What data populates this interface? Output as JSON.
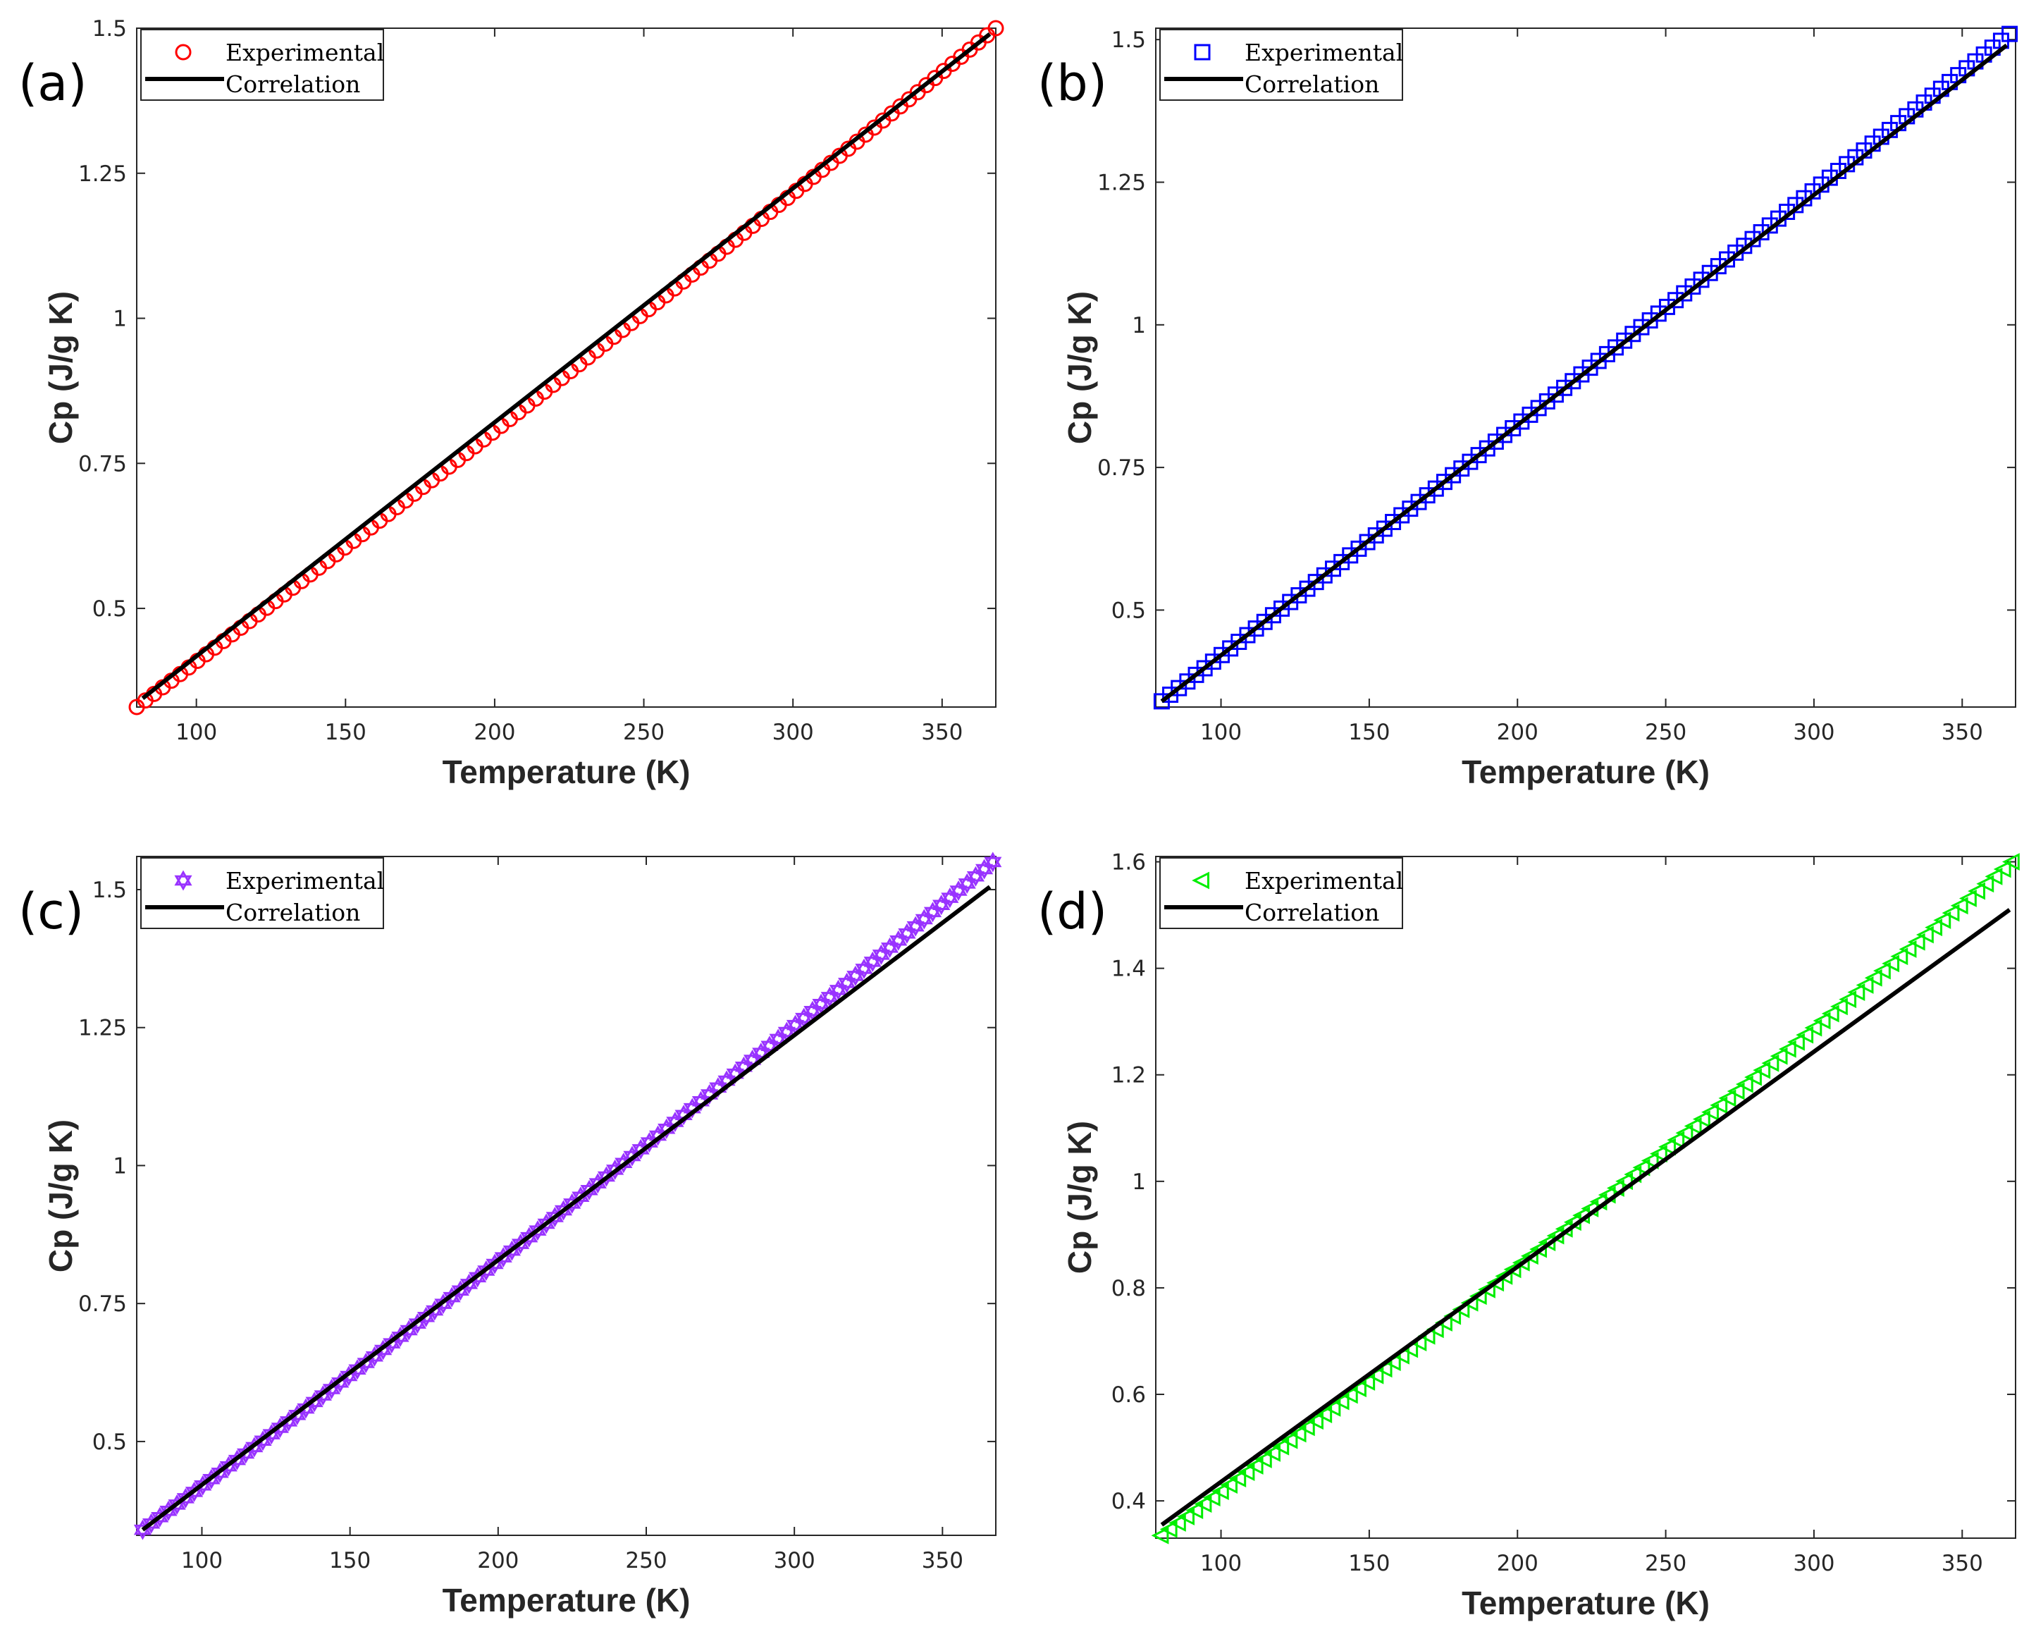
{
  "figure": {
    "background": "#ffffff",
    "axis_color": "#262626",
    "correlation_color": "#000000"
  },
  "chart_data": [
    {
      "panel": "(a)",
      "type": "scatter",
      "xlabel": "Temperature (K)",
      "ylabel": "Cp (J/g K)",
      "xlim": [
        80,
        368
      ],
      "ylim": [
        0.33,
        1.5
      ],
      "xticks": [
        100,
        150,
        200,
        250,
        300,
        350
      ],
      "yticks": [
        0.5,
        0.75,
        1,
        1.25,
        1.5
      ],
      "yticklabels": [
        "0.5",
        "0.75",
        "1",
        "1.25",
        "1.5"
      ],
      "legend": {
        "position": "top-left",
        "entries": [
          "Experimental",
          "Correlation"
        ]
      },
      "series": [
        {
          "name": "Experimental",
          "marker": "circle",
          "color": "#ff0000",
          "x": [
            80,
            368
          ],
          "y": [
            0.33,
            1.5
          ],
          "bulge": -0.012,
          "n_points": 100
        },
        {
          "name": "Correlation",
          "style": "line",
          "color": "#000000",
          "x": [
            82,
            366
          ],
          "y": [
            0.345,
            1.49
          ]
        }
      ]
    },
    {
      "panel": "(b)",
      "type": "scatter",
      "xlabel": "Temperature (K)",
      "ylabel": "Cp (J/g K)",
      "xlim": [
        78,
        368
      ],
      "ylim": [
        0.33,
        1.52
      ],
      "xticks": [
        100,
        150,
        200,
        250,
        300,
        350
      ],
      "yticks": [
        0.5,
        0.75,
        1,
        1.25,
        1.5
      ],
      "yticklabels": [
        "0.5",
        "0.75",
        "1",
        "1.25",
        "1.5"
      ],
      "legend": {
        "position": "top-left",
        "entries": [
          "Experimental",
          "Correlation"
        ]
      },
      "series": [
        {
          "name": "Experimental",
          "marker": "square",
          "color": "#0000ff",
          "x": [
            80,
            366
          ],
          "y": [
            0.34,
            1.51
          ],
          "bulge": -0.006,
          "n_points": 100
        },
        {
          "name": "Correlation",
          "style": "line",
          "color": "#000000",
          "x": [
            80,
            365
          ],
          "y": [
            0.34,
            1.49
          ]
        }
      ]
    },
    {
      "panel": "(c)",
      "type": "scatter",
      "xlabel": "Temperature (K)",
      "ylabel": "Cp (J/g K)",
      "xlim": [
        78,
        368
      ],
      "ylim": [
        0.33,
        1.56
      ],
      "xticks": [
        100,
        150,
        200,
        250,
        300,
        350
      ],
      "yticks": [
        0.5,
        0.75,
        1,
        1.25,
        1.5
      ],
      "yticklabels": [
        "0.5",
        "0.75",
        "1",
        "1.25",
        "1.5"
      ],
      "legend": {
        "position": "top-left",
        "entries": [
          "Experimental",
          "Correlation"
        ]
      },
      "series": [
        {
          "name": "Experimental",
          "marker": "hexagram",
          "color": "#9933ff",
          "x": [
            80,
            367
          ],
          "y": [
            0.34,
            1.55
          ],
          "bulge": -0.02,
          "n_points": 100
        },
        {
          "name": "Correlation",
          "style": "line",
          "color": "#000000",
          "x": [
            80,
            366
          ],
          "y": [
            0.34,
            1.505
          ]
        }
      ]
    },
    {
      "panel": "(d)",
      "type": "scatter",
      "xlabel": "Temperature (K)",
      "ylabel": "Cp (J/g K)",
      "xlim": [
        78,
        368
      ],
      "ylim": [
        0.33,
        1.61
      ],
      "xticks": [
        100,
        150,
        200,
        250,
        300,
        350
      ],
      "yticks": [
        0.4,
        0.6,
        0.8,
        1,
        1.2,
        1.4,
        1.6
      ],
      "yticklabels": [
        "0.4",
        "0.6",
        "0.8",
        "1",
        "1.2",
        "1.4",
        "1.6"
      ],
      "legend": {
        "position": "top-left",
        "entries": [
          "Experimental",
          "Correlation"
        ]
      },
      "series": [
        {
          "name": "Experimental",
          "marker": "triangle-left",
          "color": "#00ee00",
          "x": [
            80,
            367
          ],
          "y": [
            0.335,
            1.6
          ],
          "bulge": -0.025,
          "n_points": 100
        },
        {
          "name": "Correlation",
          "style": "line",
          "color": "#000000",
          "x": [
            80,
            366
          ],
          "y": [
            0.355,
            1.51
          ]
        }
      ]
    }
  ]
}
